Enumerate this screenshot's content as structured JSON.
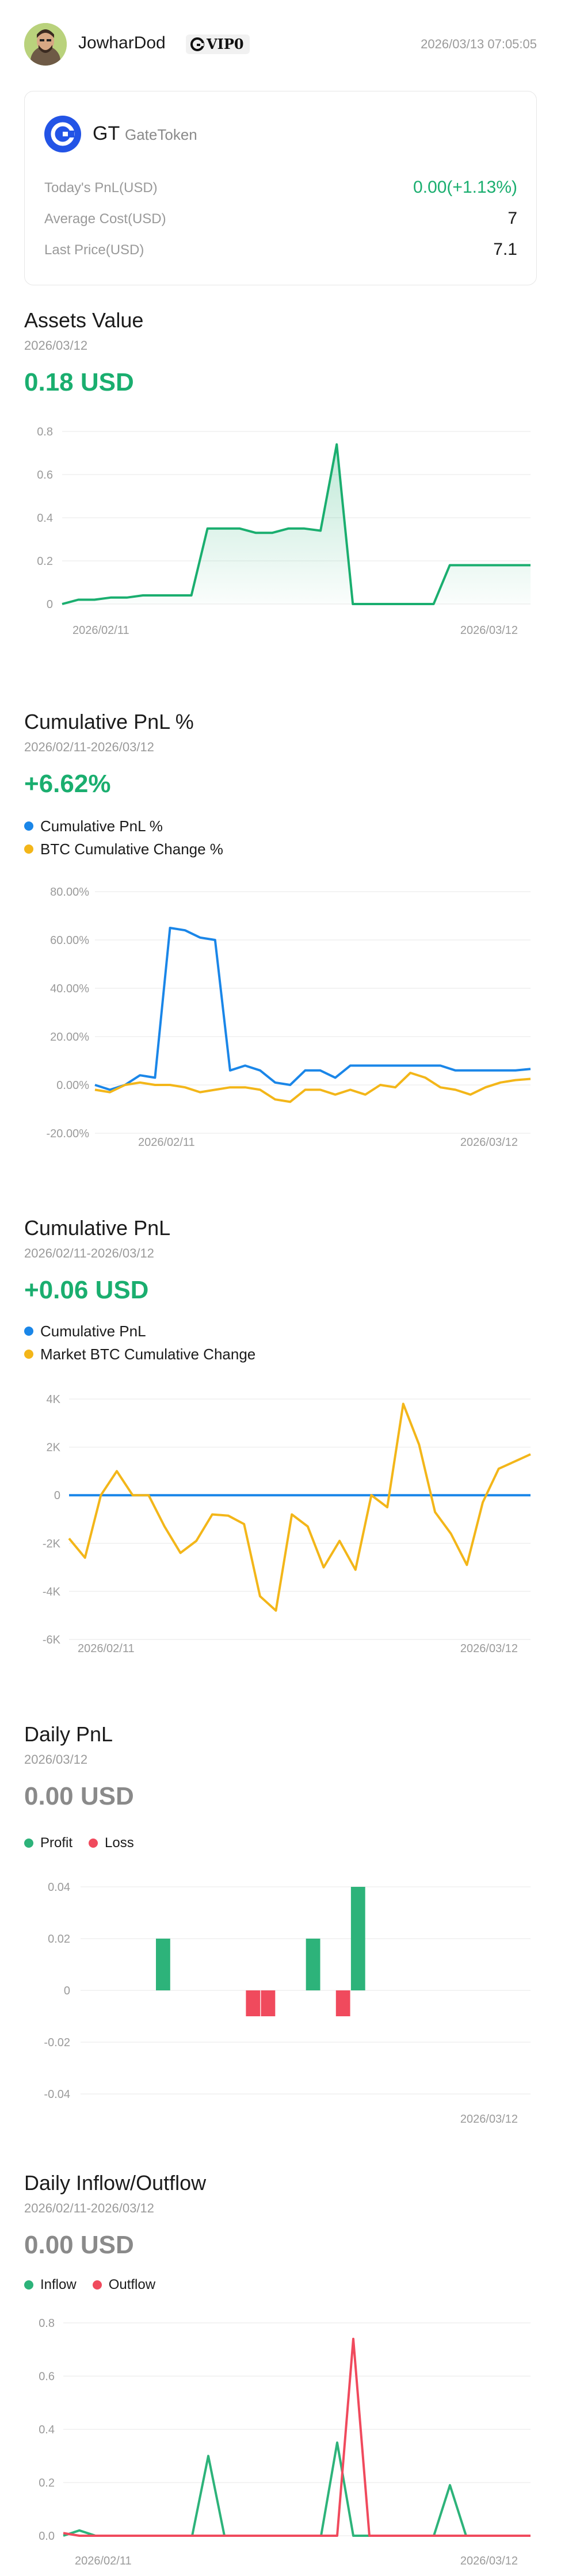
{
  "header": {
    "username": "JowharDod",
    "vip_label": "VIP0",
    "timestamp": "2026/03/13 07:05:05"
  },
  "token_card": {
    "symbol": "GT",
    "name": "GateToken",
    "rows": [
      {
        "label": "Today's PnL(USD)",
        "value": "0.00(+1.13%)",
        "positive": true
      },
      {
        "label": "Average Cost(USD)",
        "value": "7",
        "positive": false
      },
      {
        "label": "Last Price(USD)",
        "value": "7.1",
        "positive": false
      }
    ]
  },
  "colors": {
    "green": "#1aae6f",
    "blue": "#1a86e8",
    "yellow": "#f3b619",
    "red": "#f04a5d",
    "logo_blue": "#2354e6"
  },
  "sections": {
    "assets": {
      "title": "Assets Value",
      "date": "2026/03/12",
      "value": "0.18 USD"
    },
    "cum_pnl_pct": {
      "title": "Cumulative PnL %",
      "date": "2026/02/11-2026/03/12",
      "value": "+6.62%"
    },
    "cum_pnl": {
      "title": "Cumulative PnL",
      "date": "2026/02/11-2026/03/12",
      "value": "+0.06 USD"
    },
    "daily_pnl": {
      "title": "Daily PnL",
      "date": "2026/03/12",
      "value": "0.00 USD"
    },
    "inflow": {
      "title": "Daily Inflow/Outflow",
      "date": "2026/02/11-2026/03/12",
      "value": "0.00 USD"
    }
  },
  "chart_data": [
    {
      "id": "assets",
      "type": "area",
      "x_start_label": "2026/02/11",
      "x_end_label": "2026/03/12",
      "yticks": [
        "0.8",
        "0.6",
        "0.4",
        "0.2",
        "0"
      ],
      "ylim": [
        0,
        0.8
      ],
      "series": [
        {
          "color": "#1aae6f",
          "values": [
            0,
            0.02,
            0.02,
            0.03,
            0.03,
            0.04,
            0.04,
            0.04,
            0.04,
            0.35,
            0.35,
            0.35,
            0.33,
            0.33,
            0.35,
            0.35,
            0.34,
            0.74,
            0,
            0,
            0,
            0,
            0,
            0,
            0.18,
            0.18,
            0.18,
            0.18,
            0.18,
            0.18
          ]
        }
      ]
    },
    {
      "id": "cum_pnl_pct",
      "type": "line",
      "x_start_label": "2026/02/11",
      "x_end_label": "2026/03/12",
      "yticks": [
        "80.00%",
        "60.00%",
        "40.00%",
        "20.00%",
        "0.00%",
        "-20.00%"
      ],
      "ylim": [
        -20,
        80
      ],
      "legend": [
        "Cumulative PnL %",
        "BTC Cumulative Change %"
      ],
      "series": [
        {
          "name": "Cumulative PnL %",
          "color": "#1a86e8",
          "values": [
            0,
            -2,
            0,
            4,
            3,
            65,
            64,
            61,
            60,
            6,
            8,
            6,
            1,
            0,
            6,
            6,
            3,
            8,
            8,
            8,
            8,
            8,
            8,
            8,
            6,
            6,
            6,
            6,
            6,
            6.6
          ]
        },
        {
          "name": "BTC Cumulative Change %",
          "color": "#f3b619",
          "values": [
            -2,
            -3,
            0,
            1,
            0,
            0,
            -1,
            -3,
            -2,
            -1,
            -1,
            -2,
            -6,
            -7,
            -2,
            -2,
            -4,
            -2,
            -4,
            0,
            -1,
            5,
            3,
            -1,
            -2,
            -4,
            -1,
            1,
            2,
            2.5
          ]
        }
      ]
    },
    {
      "id": "cum_pnl",
      "type": "line",
      "x_start_label": "2026/02/11",
      "x_end_label": "2026/03/12",
      "yticks": [
        "4K",
        "2K",
        "0",
        "-2K",
        "-4K",
        "-6K"
      ],
      "ylim": [
        -6000,
        4000
      ],
      "legend": [
        "Cumulative PnL",
        "Market BTC Cumulative Change"
      ],
      "series": [
        {
          "name": "Cumulative PnL",
          "color": "#1a86e8",
          "values": [
            0.02,
            0.02,
            0.03,
            0.03,
            0.04,
            0.04,
            0.04,
            0.04,
            0.05,
            0.05,
            0.05,
            0.05,
            0.05,
            0.05,
            0.05,
            0.05,
            0.05,
            0.05,
            0.05,
            0.05,
            0.05,
            0.05,
            0.05,
            0.05,
            0.06,
            0.06,
            0.06,
            0.06,
            0.06,
            0.06
          ]
        },
        {
          "name": "Market BTC Cumulative Change",
          "color": "#f3b619",
          "values": [
            -1800,
            -2600,
            0,
            1000,
            0,
            0,
            -1300,
            -2400,
            -1900,
            -800,
            -850,
            -1200,
            -4200,
            -4800,
            -800,
            -1300,
            -3000,
            -1900,
            -3100,
            0,
            -500,
            3800,
            2100,
            -700,
            -1600,
            -2900,
            -300,
            1100,
            1400,
            1700
          ]
        }
      ]
    },
    {
      "id": "daily_pnl",
      "type": "bar",
      "x_end_label": "2026/03/12",
      "yticks": [
        "0.04",
        "0.02",
        "0",
        "-0.02",
        "-0.04"
      ],
      "ylim": [
        -0.04,
        0.04
      ],
      "legend": [
        "Profit",
        "Loss"
      ],
      "series": [
        {
          "name": "Profit",
          "color": "#2db37a",
          "values": [
            0,
            0,
            0,
            0,
            0,
            0.02,
            0,
            0,
            0,
            0,
            0,
            0,
            0,
            0,
            0,
            0.02,
            0,
            0,
            0.04,
            0,
            0,
            0,
            0,
            0,
            0,
            0,
            0,
            0,
            0,
            0
          ]
        },
        {
          "name": "Loss",
          "color": "#f04a5d",
          "values": [
            0,
            0,
            0,
            0,
            0,
            0,
            0,
            0,
            0,
            0,
            0,
            -0.01,
            -0.01,
            0,
            0,
            0,
            0,
            -0.01,
            0,
            0,
            0,
            0,
            0,
            0,
            0,
            0,
            0,
            0,
            0,
            0
          ]
        }
      ]
    },
    {
      "id": "inflow",
      "type": "line",
      "x_start_label": "2026/02/11",
      "x_end_label": "2026/03/12",
      "yticks": [
        "0.8",
        "0.6",
        "0.4",
        "0.2",
        "0.0"
      ],
      "ylim": [
        0,
        0.8
      ],
      "legend": [
        "Inflow",
        "Outflow"
      ],
      "series": [
        {
          "name": "Inflow",
          "color": "#2db37a",
          "values": [
            0,
            0.02,
            0,
            0,
            0,
            0,
            0,
            0,
            0,
            0.3,
            0,
            0,
            0,
            0,
            0,
            0,
            0,
            0.35,
            0,
            0,
            0,
            0,
            0,
            0,
            0.19,
            0,
            0,
            0,
            0,
            0
          ]
        },
        {
          "name": "Outflow",
          "color": "#f04a5d",
          "values": [
            0.01,
            0,
            0,
            0,
            0,
            0,
            0,
            0,
            0,
            0,
            0,
            0,
            0,
            0,
            0,
            0,
            0,
            0,
            0.74,
            0,
            0,
            0,
            0,
            0,
            0,
            0,
            0,
            0,
            0,
            0
          ]
        }
      ]
    }
  ]
}
